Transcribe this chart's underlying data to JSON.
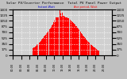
{
  "title": "Solar PV/Inverter Performance  Total PV Panel Power Output",
  "bg_color": "#c0c0c0",
  "plot_bg_color": "#d0d0d0",
  "grid_color": "#ffffff",
  "bar_color": "#ff0000",
  "line_color_blue": "#0000cc",
  "line_color_red": "#ff0000",
  "n_bars": 288,
  "ylim_max": 1400,
  "ylim_min": 0,
  "ytick_left": [
    0,
    175,
    350,
    525,
    700,
    875,
    1050,
    1225,
    1400
  ],
  "ytick_right": [
    0,
    175,
    350,
    525,
    700,
    875,
    1050,
    1225,
    1400
  ],
  "font_size": 3.5,
  "title_fontsize": 3.0
}
